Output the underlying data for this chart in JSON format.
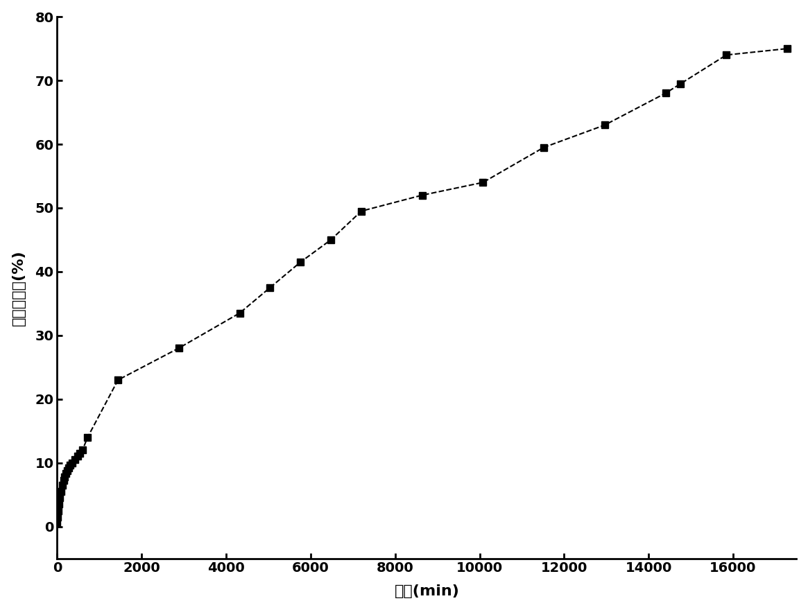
{
  "x": [
    0,
    15,
    30,
    45,
    60,
    90,
    120,
    150,
    180,
    210,
    240,
    270,
    300,
    360,
    420,
    480,
    540,
    600,
    720,
    1440,
    2880,
    4320,
    5040,
    5760,
    6480,
    7200,
    8640,
    10080,
    11520,
    12960,
    14400,
    14760,
    15840,
    17280
  ],
  "y": [
    0.5,
    1.5,
    2.5,
    3.5,
    4.5,
    5.5,
    6.5,
    7.2,
    7.8,
    8.3,
    8.8,
    9.2,
    9.6,
    10.0,
    10.5,
    11.0,
    11.5,
    12.0,
    14.0,
    23.0,
    28.0,
    33.5,
    37.5,
    41.5,
    45.0,
    49.5,
    52.0,
    54.0,
    59.5,
    63.0,
    68.0,
    69.5,
    74.0,
    75.0
  ],
  "xlabel": "时间(min)",
  "ylabel": "药物释放量(%)",
  "xlim": [
    0,
    17500
  ],
  "ylim": [
    -5,
    80
  ],
  "xticks": [
    0,
    2000,
    4000,
    6000,
    8000,
    10000,
    12000,
    14000,
    16000
  ],
  "yticks": [
    0,
    10,
    20,
    30,
    40,
    50,
    60,
    70,
    80
  ],
  "line_color": "#000000",
  "marker": "s",
  "marker_size": 7,
  "line_style": "--",
  "line_width": 1.5,
  "bg_color": "#ffffff",
  "font_family": "SimHei",
  "tick_fontsize": 14,
  "label_fontsize": 16
}
